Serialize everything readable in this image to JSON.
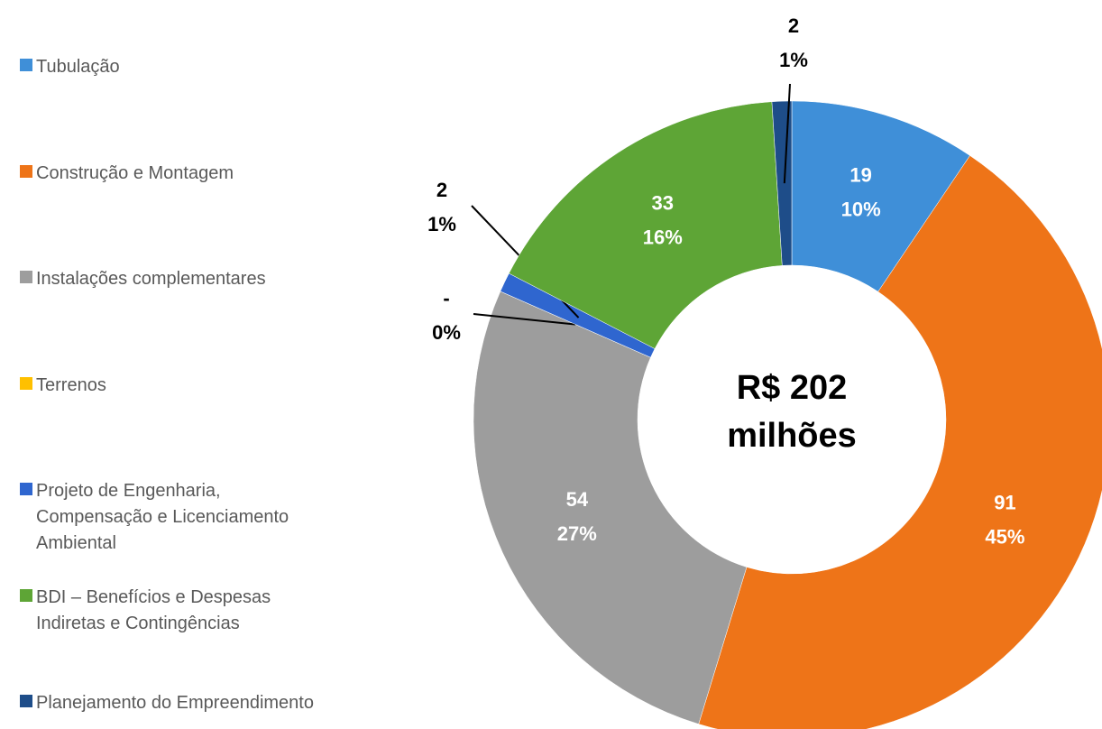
{
  "chart_data": {
    "type": "donut",
    "categories": [
      "Tubulação",
      "Construção e Montagem",
      "Instalações complementares",
      "Terrenos",
      "Projeto de Engenharia, Compensação e Licenciamento Ambiental",
      "BDI – Benefícios e Despesas Indiretas e Contingências",
      "Planejamento do Empreendimento"
    ],
    "values": [
      19,
      91,
      54,
      0,
      2,
      33,
      2
    ],
    "value_labels": [
      "19",
      "91",
      "54",
      "-",
      "2",
      "33",
      "2"
    ],
    "percent_labels": [
      "10%",
      "45%",
      "27%",
      "0%",
      "1%",
      "16%",
      "1%"
    ],
    "colors": [
      "#3f8fd8",
      "#ee7418",
      "#9d9d9d",
      "#ffc000",
      "#2f66cf",
      "#5ea536",
      "#1e4d89"
    ],
    "center_label": [
      "R$ 202",
      "milhões"
    ],
    "legend": "left"
  }
}
